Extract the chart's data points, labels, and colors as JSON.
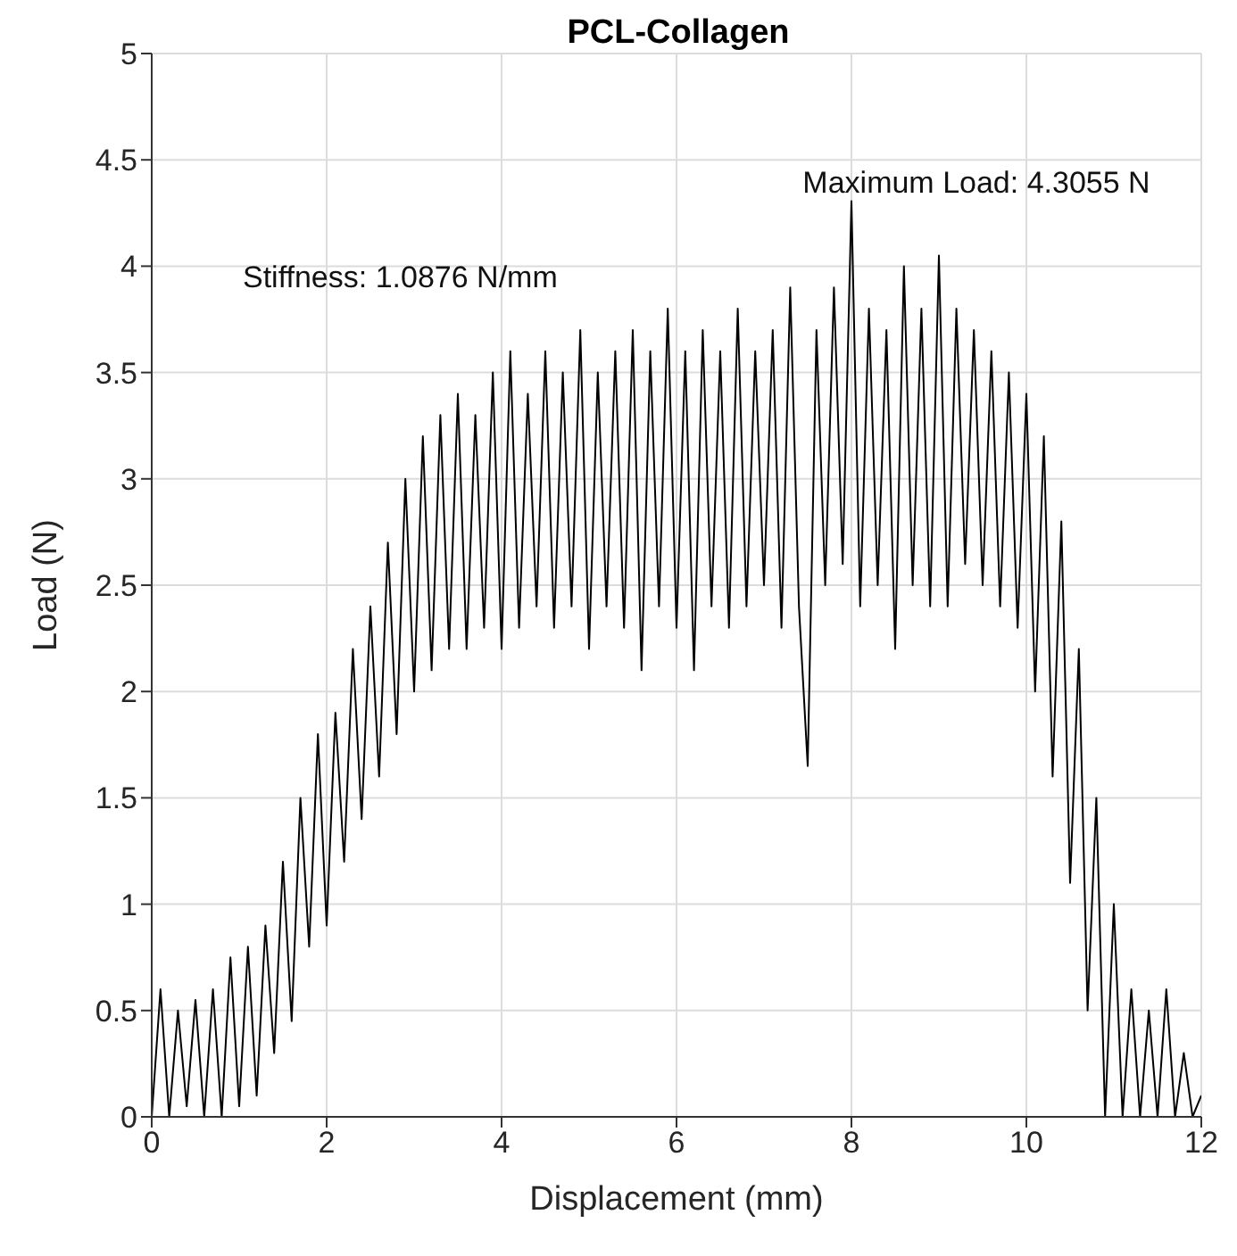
{
  "chart_data": {
    "type": "line",
    "title": "PCL-Collagen",
    "xlabel": "Displacement (mm)",
    "ylabel": "Load (N)",
    "x": [
      0,
      0.1,
      0.2,
      0.3,
      0.4,
      0.5,
      0.6,
      0.7,
      0.8,
      0.9,
      1,
      1.1,
      1.2,
      1.3,
      1.4,
      1.5,
      1.6,
      1.7,
      1.8,
      1.9,
      2,
      2.1,
      2.2,
      2.3,
      2.4,
      2.5,
      2.6,
      2.7,
      2.8,
      2.9,
      3,
      3.1,
      3.2,
      3.3,
      3.4,
      3.5,
      3.6,
      3.7,
      3.8,
      3.9,
      4,
      4.1,
      4.2,
      4.3,
      4.4,
      4.5,
      4.6,
      4.7,
      4.8,
      4.9,
      5,
      5.1,
      5.2,
      5.3,
      5.4,
      5.5,
      5.6,
      5.7,
      5.8,
      5.9,
      6,
      6.1,
      6.2,
      6.3,
      6.4,
      6.5,
      6.6,
      6.7,
      6.8,
      6.9,
      7,
      7.1,
      7.2,
      7.3,
      7.4,
      7.5,
      7.6,
      7.7,
      7.8,
      7.9,
      8,
      8.1,
      8.2,
      8.3,
      8.4,
      8.5,
      8.6,
      8.7,
      8.8,
      8.9,
      9,
      9.1,
      9.2,
      9.3,
      9.4,
      9.5,
      9.6,
      9.7,
      9.8,
      9.9,
      10,
      10.1,
      10.2,
      10.3,
      10.4,
      10.5,
      10.6,
      10.7,
      10.8,
      10.9,
      11,
      11.1,
      11.2,
      11.3,
      11.4,
      11.5,
      11.6,
      11.7,
      11.8,
      11.9,
      12
    ],
    "series": [
      {
        "color": "#000000",
        "values": [
          0,
          0.6,
          0,
          0.5,
          0.05,
          0.55,
          0,
          0.6,
          0,
          0.75,
          0.05,
          0.8,
          0.1,
          0.9,
          0.3,
          1.2,
          0.45,
          1.5,
          0.8,
          1.8,
          0.9,
          1.9,
          1.2,
          2.2,
          1.4,
          2.4,
          1.6,
          2.7,
          1.8,
          3,
          2,
          3.2,
          2.1,
          3.3,
          2.2,
          3.4,
          2.2,
          3.3,
          2.3,
          3.5,
          2.2,
          3.6,
          2.3,
          3.4,
          2.4,
          3.6,
          2.3,
          3.5,
          2.4,
          3.7,
          2.2,
          3.5,
          2.4,
          3.6,
          2.3,
          3.7,
          2.1,
          3.6,
          2.4,
          3.8,
          2.3,
          3.6,
          2.1,
          3.7,
          2.4,
          3.6,
          2.3,
          3.8,
          2.4,
          3.6,
          2.5,
          3.7,
          2.3,
          3.9,
          2.4,
          1.65,
          3.7,
          2.5,
          3.9,
          2.6,
          4.3055,
          2.4,
          3.8,
          2.5,
          3.7,
          2.2,
          4,
          2.5,
          3.8,
          2.4,
          4.05,
          2.4,
          3.8,
          2.6,
          3.7,
          2.5,
          3.6,
          2.4,
          3.5,
          2.3,
          3.4,
          2,
          3.2,
          1.6,
          2.8,
          1.1,
          2.2,
          0.5,
          1.5,
          0,
          1,
          0,
          0.6,
          0,
          0.5,
          0,
          0.6,
          0,
          0.3,
          0,
          0.1
        ]
      }
    ],
    "xlim": [
      0,
      12
    ],
    "xticks": [
      0,
      2,
      4,
      6,
      8,
      10,
      12
    ],
    "ylim": [
      0,
      5
    ],
    "yticks": [
      0,
      0.5,
      1,
      1.5,
      2,
      2.5,
      3,
      3.5,
      4,
      4.5,
      5
    ],
    "grid": true,
    "line_style": "solid",
    "annotations": [
      {
        "text": "Maximum Load: 4.3055 N",
        "x": 8,
        "y": 4.3055
      },
      "Stiffness: 1.0876 N/mm"
    ]
  }
}
